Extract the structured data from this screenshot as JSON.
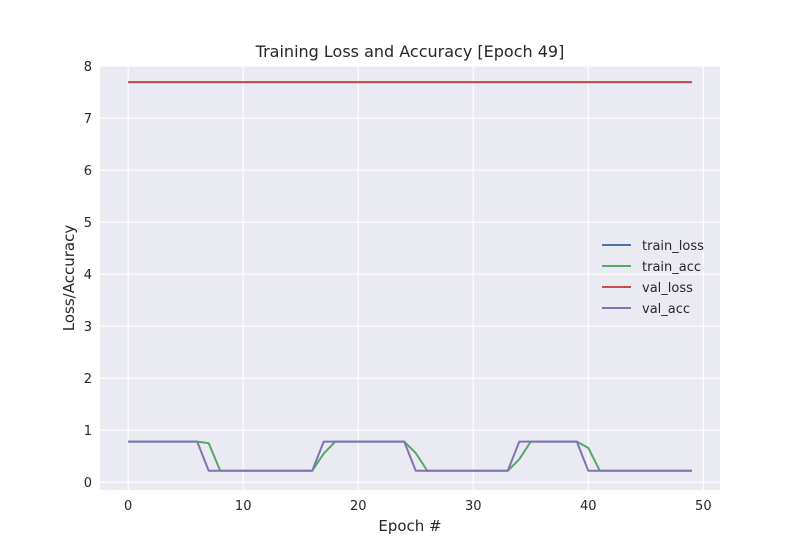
{
  "chart_data": {
    "type": "line",
    "title": "Training Loss and Accuracy [Epoch 49]",
    "xlabel": "Epoch #",
    "ylabel": "Loss/Accuracy",
    "xlim": [
      -2.45,
      51.45
    ],
    "ylim": [
      -0.15,
      8.0
    ],
    "xticks": [
      0,
      10,
      20,
      30,
      40,
      50
    ],
    "yticks": [
      0,
      1,
      2,
      3,
      4,
      5,
      6,
      7,
      8
    ],
    "grid": true,
    "background": "#EAEAF2",
    "legend_position": "center-right",
    "x": [
      0,
      1,
      2,
      3,
      4,
      5,
      6,
      7,
      8,
      9,
      10,
      11,
      12,
      13,
      14,
      15,
      16,
      17,
      18,
      19,
      20,
      21,
      22,
      23,
      24,
      25,
      26,
      27,
      28,
      29,
      30,
      31,
      32,
      33,
      34,
      35,
      36,
      37,
      38,
      39,
      40,
      41,
      42,
      43,
      44,
      45,
      46,
      47,
      48,
      49
    ],
    "series": [
      {
        "name": "train_loss",
        "color": "#4C72B0",
        "values": [
          7.69,
          7.69,
          7.69,
          7.69,
          7.69,
          7.69,
          7.69,
          7.69,
          7.69,
          7.69,
          7.69,
          7.69,
          7.69,
          7.69,
          7.69,
          7.69,
          7.69,
          7.69,
          7.69,
          7.69,
          7.69,
          7.69,
          7.69,
          7.69,
          7.69,
          7.69,
          7.69,
          7.69,
          7.69,
          7.69,
          7.69,
          7.69,
          7.69,
          7.69,
          7.69,
          7.69,
          7.69,
          7.69,
          7.69,
          7.69,
          7.69,
          7.69,
          7.69,
          7.69,
          7.69,
          7.69,
          7.69,
          7.69,
          7.69,
          7.69
        ]
      },
      {
        "name": "train_acc",
        "color": "#55A868",
        "values": [
          0.78,
          0.78,
          0.78,
          0.78,
          0.78,
          0.78,
          0.78,
          0.75,
          0.22,
          0.22,
          0.22,
          0.22,
          0.22,
          0.22,
          0.22,
          0.22,
          0.22,
          0.55,
          0.78,
          0.78,
          0.78,
          0.78,
          0.78,
          0.78,
          0.78,
          0.56,
          0.22,
          0.22,
          0.22,
          0.22,
          0.22,
          0.22,
          0.22,
          0.22,
          0.44,
          0.78,
          0.78,
          0.78,
          0.78,
          0.78,
          0.66,
          0.22,
          0.22,
          0.22,
          0.22,
          0.22,
          0.22,
          0.22,
          0.22,
          0.22
        ]
      },
      {
        "name": "val_loss",
        "color": "#C44E52",
        "values": [
          7.69,
          7.69,
          7.69,
          7.69,
          7.69,
          7.69,
          7.69,
          7.69,
          7.69,
          7.69,
          7.69,
          7.69,
          7.69,
          7.69,
          7.69,
          7.69,
          7.69,
          7.69,
          7.69,
          7.69,
          7.69,
          7.69,
          7.69,
          7.69,
          7.69,
          7.69,
          7.69,
          7.69,
          7.69,
          7.69,
          7.69,
          7.69,
          7.69,
          7.69,
          7.69,
          7.69,
          7.69,
          7.69,
          7.69,
          7.69,
          7.69,
          7.69,
          7.69,
          7.69,
          7.69,
          7.69,
          7.69,
          7.69,
          7.69,
          7.69
        ]
      },
      {
        "name": "val_acc",
        "color": "#8172B2",
        "values": [
          0.78,
          0.78,
          0.78,
          0.78,
          0.78,
          0.78,
          0.78,
          0.22,
          0.22,
          0.22,
          0.22,
          0.22,
          0.22,
          0.22,
          0.22,
          0.22,
          0.22,
          0.78,
          0.78,
          0.78,
          0.78,
          0.78,
          0.78,
          0.78,
          0.78,
          0.22,
          0.22,
          0.22,
          0.22,
          0.22,
          0.22,
          0.22,
          0.22,
          0.22,
          0.78,
          0.78,
          0.78,
          0.78,
          0.78,
          0.78,
          0.22,
          0.22,
          0.22,
          0.22,
          0.22,
          0.22,
          0.22,
          0.22,
          0.22,
          0.22
        ]
      }
    ]
  }
}
